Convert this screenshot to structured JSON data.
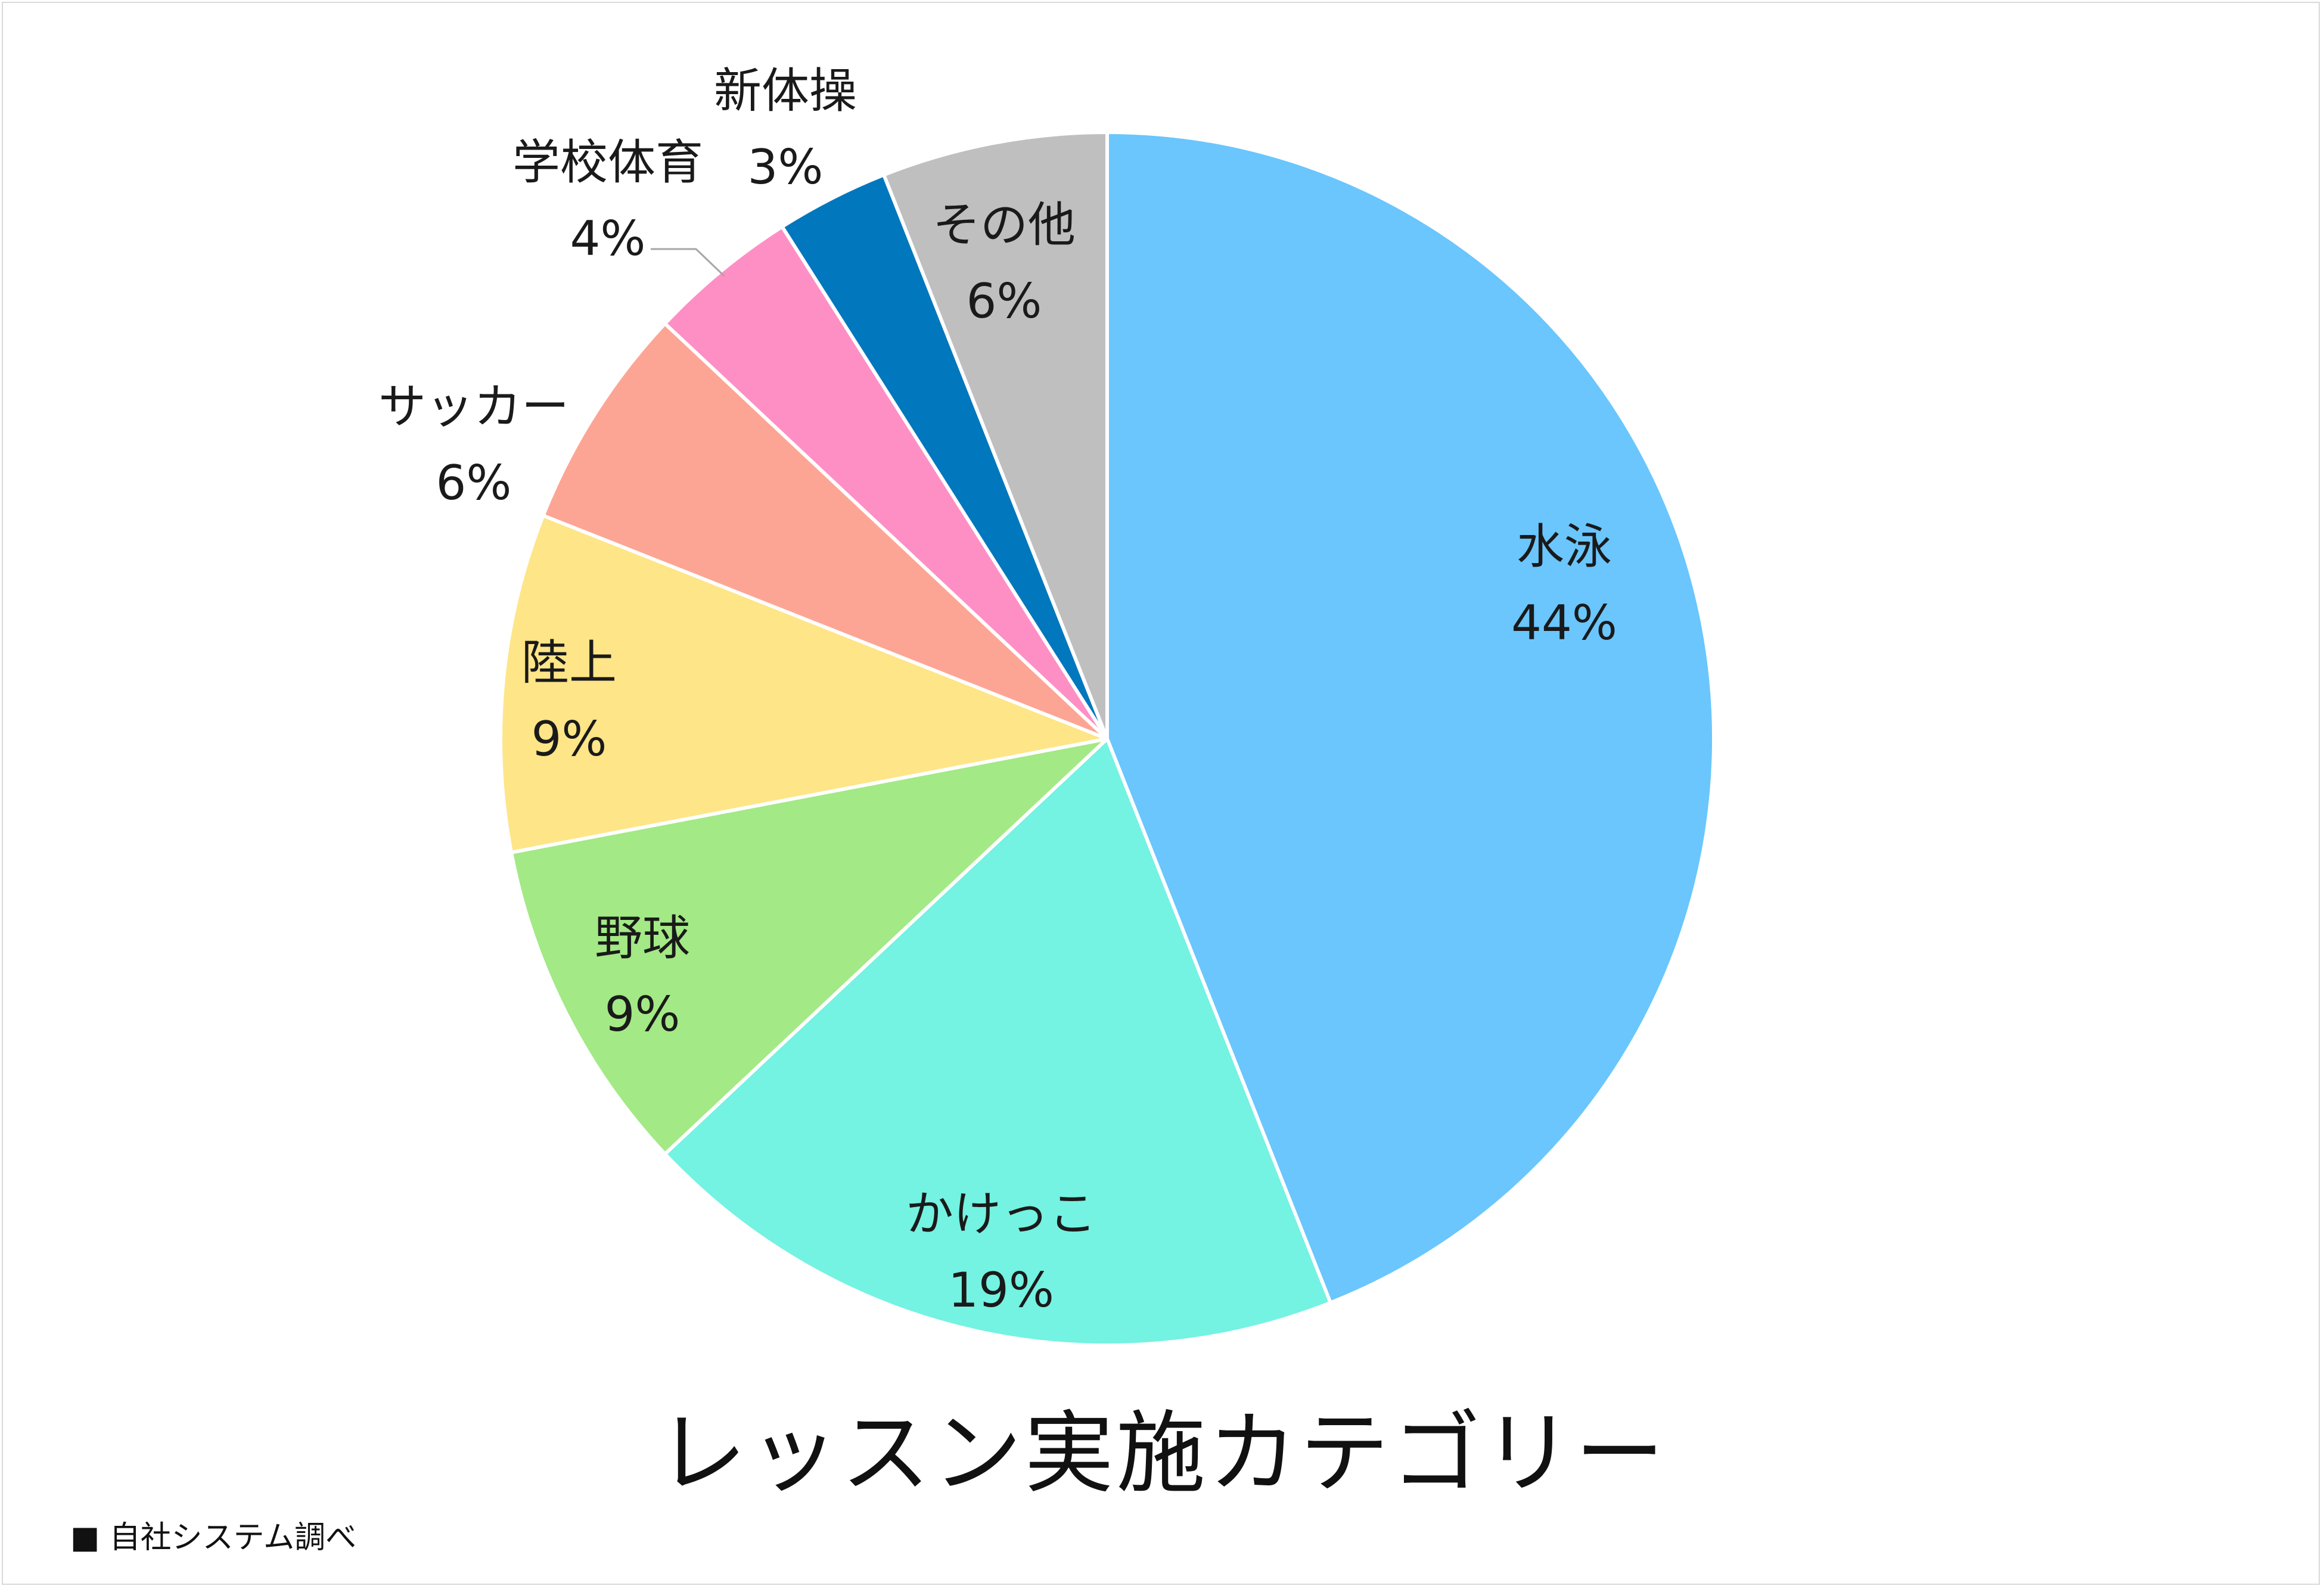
{
  "chart_data": {
    "type": "pie",
    "title": "レッスン実施カテゴリー",
    "categories": [
      "水泳",
      "かけっこ",
      "野球",
      "陸上",
      "サッカー",
      "学校体育",
      "新体操",
      "その他"
    ],
    "values": [
      44,
      19,
      9,
      9,
      6,
      4,
      3,
      6
    ],
    "value_labels": [
      "44%",
      "19%",
      "9%",
      "9%",
      "6%",
      "4%",
      "3%",
      "6%"
    ],
    "colors": [
      "#6ac6fd",
      "#74f2e2",
      "#a3e985",
      "#fee587",
      "#fda594",
      "#fe8fc5",
      "#0177bd",
      "#bfbfbf"
    ],
    "start_angle": "12 o'clock",
    "direction": "clockwise",
    "legend": "none",
    "label_placement": "inside for large slices, outside for small slices"
  },
  "footnote": "■ 自社システム調べ"
}
